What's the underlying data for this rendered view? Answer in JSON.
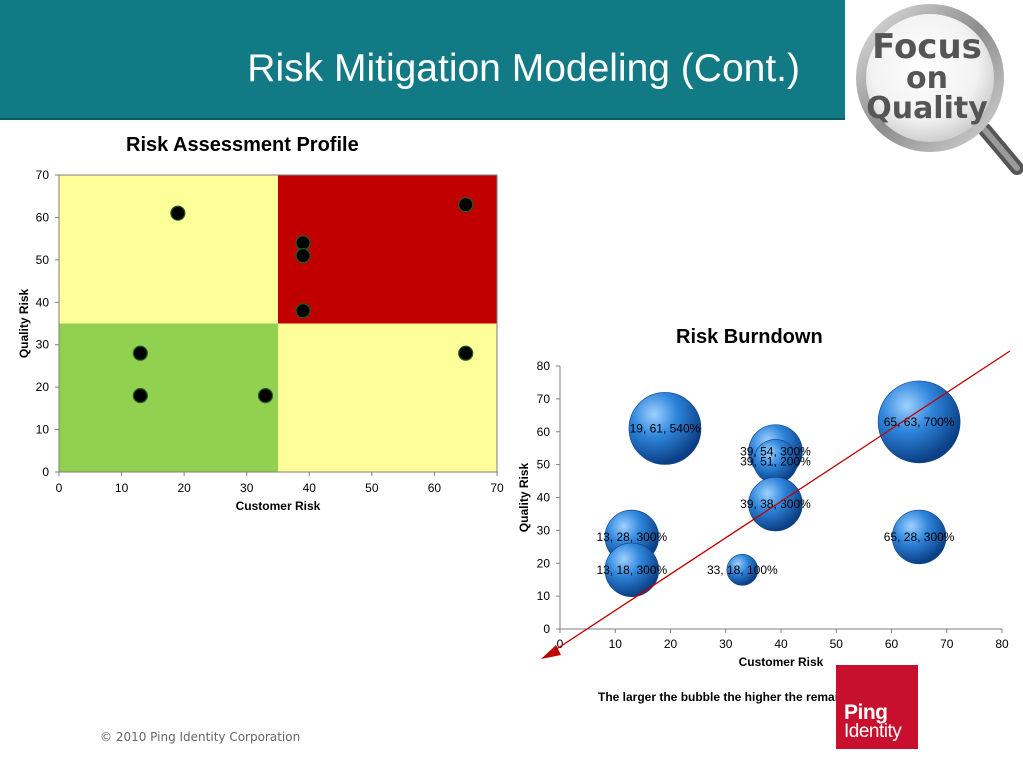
{
  "slide": {
    "title": "Risk Mitigation Modeling (Cont.)",
    "copyright": "© 2010 Ping Identity Corporation",
    "focus_logo": {
      "line1": "Focus",
      "line2": "on",
      "line3": "Quality"
    },
    "ping_logo": {
      "line1": "Ping",
      "line2": "Identity"
    },
    "colors": {
      "header": "#127a85",
      "red_zone": "#c00000",
      "yellow_zone": "#ffff99",
      "green_zone": "#92d050",
      "bubble": "#1f6fc5"
    }
  },
  "chart_data": [
    {
      "type": "scatter",
      "title": "Risk Assessment Profile",
      "xlabel": "Customer Risk",
      "ylabel": "Quality Risk",
      "xlim": [
        0,
        70
      ],
      "ylim": [
        0,
        70
      ],
      "xticks": [
        0,
        10,
        20,
        30,
        40,
        50,
        60,
        70
      ],
      "yticks": [
        0,
        10,
        20,
        30,
        40,
        50,
        60,
        70
      ],
      "quadrant_split": [
        35,
        35
      ],
      "points": [
        {
          "x": 19,
          "y": 61
        },
        {
          "x": 65,
          "y": 63
        },
        {
          "x": 39,
          "y": 54
        },
        {
          "x": 39,
          "y": 51
        },
        {
          "x": 39,
          "y": 38
        },
        {
          "x": 13,
          "y": 28
        },
        {
          "x": 65,
          "y": 28
        },
        {
          "x": 13,
          "y": 18
        },
        {
          "x": 33,
          "y": 18
        }
      ]
    },
    {
      "type": "bubble",
      "title": "Risk Burndown",
      "xlabel": "Customer Risk",
      "ylabel": "Quality Risk",
      "xlim": [
        0,
        80
      ],
      "ylim": [
        0,
        80
      ],
      "xticks": [
        0,
        10,
        20,
        30,
        40,
        50,
        60,
        70,
        80
      ],
      "yticks": [
        0,
        10,
        20,
        30,
        40,
        50,
        60,
        70,
        80
      ],
      "points": [
        {
          "x": 19,
          "y": 61,
          "size": 540,
          "label": "19, 61, 540%"
        },
        {
          "x": 65,
          "y": 63,
          "size": 700,
          "label": "65, 63, 700%"
        },
        {
          "x": 39,
          "y": 54,
          "size": 300,
          "label": "39, 54, 300%"
        },
        {
          "x": 39,
          "y": 51,
          "size": 200,
          "label": "39, 51, 200%"
        },
        {
          "x": 39,
          "y": 38,
          "size": 300,
          "label": "39, 38, 300%"
        },
        {
          "x": 13,
          "y": 28,
          "size": 300,
          "label": "13, 28, 300%"
        },
        {
          "x": 65,
          "y": 28,
          "size": 300,
          "label": "65, 28, 300%"
        },
        {
          "x": 13,
          "y": 18,
          "size": 300,
          "label": "13, 18, 300%"
        },
        {
          "x": 33,
          "y": 18,
          "size": 100,
          "label": "33, 18, 100%"
        }
      ],
      "note": "The larger the bubble the higher the remaining risk"
    }
  ]
}
